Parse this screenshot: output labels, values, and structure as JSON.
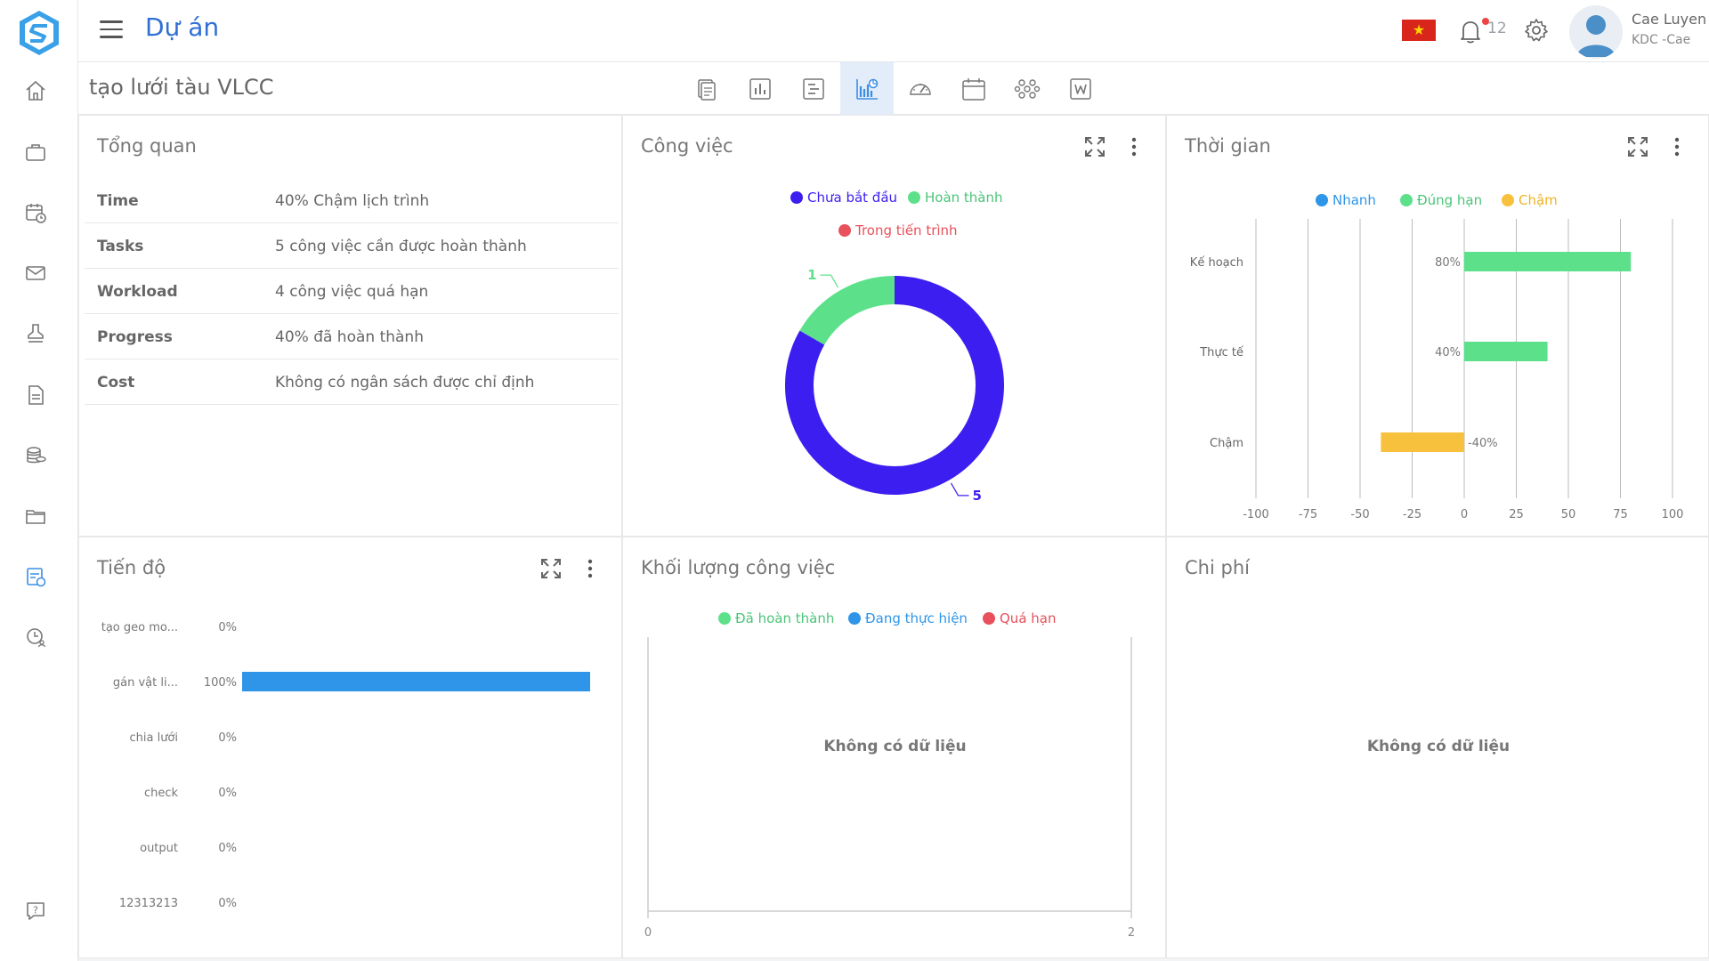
{
  "header": {
    "title": "Dự án",
    "notification_count": "12",
    "user_name": "Cae Luyen",
    "user_org": "KDC -Cae",
    "flag_icon": "vietnam-flag-icon"
  },
  "subheader": {
    "project_name": "tạo lưới tàu VLCC"
  },
  "sidebar": {
    "items": [
      "home-icon",
      "briefcase-icon",
      "calendar-clock-icon",
      "mail-icon",
      "stamp-icon",
      "document-icon",
      "coins-icon",
      "folder-icon",
      "project-report-icon",
      "clock-user-icon",
      "help-icon"
    ]
  },
  "views": {
    "tabs": [
      "documents-view",
      "bar-chart-view",
      "list-view",
      "dashboard-view",
      "gauge-view",
      "calendar-view",
      "network-view",
      "word-view"
    ],
    "active": "dashboard-view"
  },
  "overview": {
    "title": "Tổng quan",
    "rows": [
      {
        "key": "Time",
        "value": "40% Chậm lịch trình"
      },
      {
        "key": "Tasks",
        "value": "5 công việc cần được hoàn thành"
      },
      {
        "key": "Workload",
        "value": "4 công việc quá hạn"
      },
      {
        "key": "Progress",
        "value": "40% đã hoàn thành"
      },
      {
        "key": "Cost",
        "value": "Không có ngân sách được chỉ định"
      }
    ]
  },
  "tasks_panel": {
    "title": "Công việc",
    "legend": [
      {
        "label": "Chưa bắt đầu",
        "color": "#3c1ff0"
      },
      {
        "label": "Hoàn thành",
        "color": "#5ce18a"
      },
      {
        "label": "Trong tiến trình",
        "color": "#e8505b"
      }
    ]
  },
  "time_panel": {
    "title": "Thời gian",
    "legend": [
      {
        "label": "Nhanh",
        "color": "#2e95e8"
      },
      {
        "label": "Đúng hạn",
        "color": "#5ce18a"
      },
      {
        "label": "Chậm",
        "color": "#f7c13e"
      }
    ]
  },
  "progress_panel": {
    "title": "Tiến độ"
  },
  "workload_panel": {
    "title": "Khối lượng công việc",
    "legend": [
      {
        "label": "Đã hoàn thành",
        "color": "#5ce18a"
      },
      {
        "label": "Đang thực hiện",
        "color": "#2e95e8"
      },
      {
        "label": "Quá hạn",
        "color": "#e8505b"
      }
    ],
    "no_data": "Không có dữ liệu",
    "x_min_label": "0",
    "x_max_label": "2"
  },
  "cost_panel": {
    "title": "Chi phí",
    "no_data": "Không có dữ liệu"
  },
  "chart_data": [
    {
      "type": "pie",
      "title": "Công việc",
      "donut": true,
      "slices": [
        {
          "name": "Chưa bắt đầu",
          "value": 5,
          "color": "#3c1ff0"
        },
        {
          "name": "Hoàn thành",
          "value": 1,
          "color": "#5ce18a"
        },
        {
          "name": "Trong tiến trình",
          "value": 0,
          "color": "#e8505b"
        }
      ]
    },
    {
      "type": "bar",
      "orientation": "horizontal",
      "title": "Thời gian",
      "categories": [
        "Kế hoạch",
        "Thực tế",
        "Chậm"
      ],
      "values": [
        80,
        40,
        -40
      ],
      "labels": [
        "80%",
        "40%",
        "-40%"
      ],
      "colors": [
        "#5ce18a",
        "#5ce18a",
        "#f7c13e"
      ],
      "xlim": [
        -100,
        100
      ],
      "xticks": [
        -100,
        -75,
        -50,
        -25,
        0,
        25,
        50,
        75,
        100
      ],
      "grid": true
    },
    {
      "type": "bar",
      "orientation": "horizontal",
      "title": "Tiến độ",
      "categories": [
        "tạo geo mo...",
        "gán vật li...",
        "chia lưới",
        "check",
        "output",
        "12313213"
      ],
      "values": [
        0,
        100,
        0,
        0,
        0,
        0
      ],
      "labels": [
        "0%",
        "100%",
        "0%",
        "0%",
        "0%",
        "0%"
      ],
      "color": "#2e95e8",
      "xlim": [
        0,
        100
      ]
    }
  ]
}
